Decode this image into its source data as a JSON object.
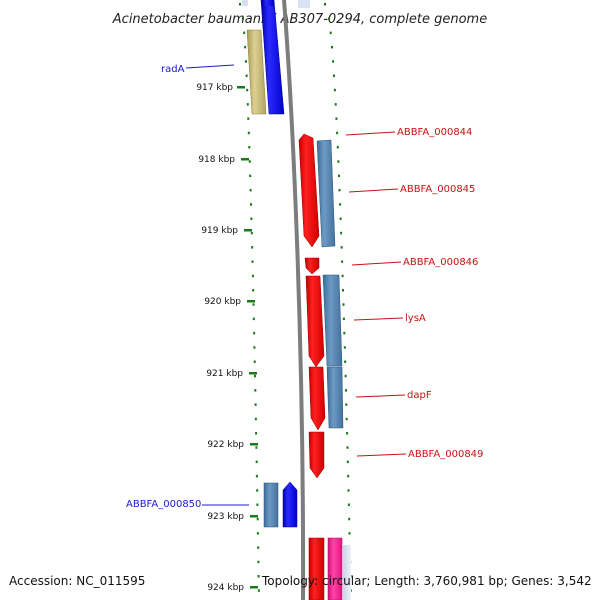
{
  "title": "Acinetobacter baumannii AB307-0294, complete genome",
  "accession": "Accession: NC_011595",
  "topology": "Topology: circular; Length: 3,760,981 bp; Genes: 3,542",
  "colors": {
    "label_blue": "#1c1cc8",
    "label_red": "#cc1111",
    "backbone": "#7d7d7d",
    "tick_green": "#1a7a1a"
  },
  "kbp_ticks": [
    "917 kbp",
    "918 kbp",
    "919 kbp",
    "920 kbp",
    "921 kbp",
    "922 kbp",
    "923 kbp",
    "924 kbp"
  ],
  "gene_labels": [
    {
      "text": "radA",
      "color": "#1c1cc8"
    },
    {
      "text": "ABBFA_000844",
      "color": "#cc1111"
    },
    {
      "text": "ABBFA_000845",
      "color": "#cc1111"
    },
    {
      "text": "ABBFA_000846",
      "color": "#cc1111"
    },
    {
      "text": "lysA",
      "color": "#cc1111"
    },
    {
      "text": "dapF",
      "color": "#cc1111"
    },
    {
      "text": "ABBFA_000849",
      "color": "#cc1111"
    },
    {
      "text": "ABBFA_000850",
      "color": "#1c1cc8"
    }
  ]
}
